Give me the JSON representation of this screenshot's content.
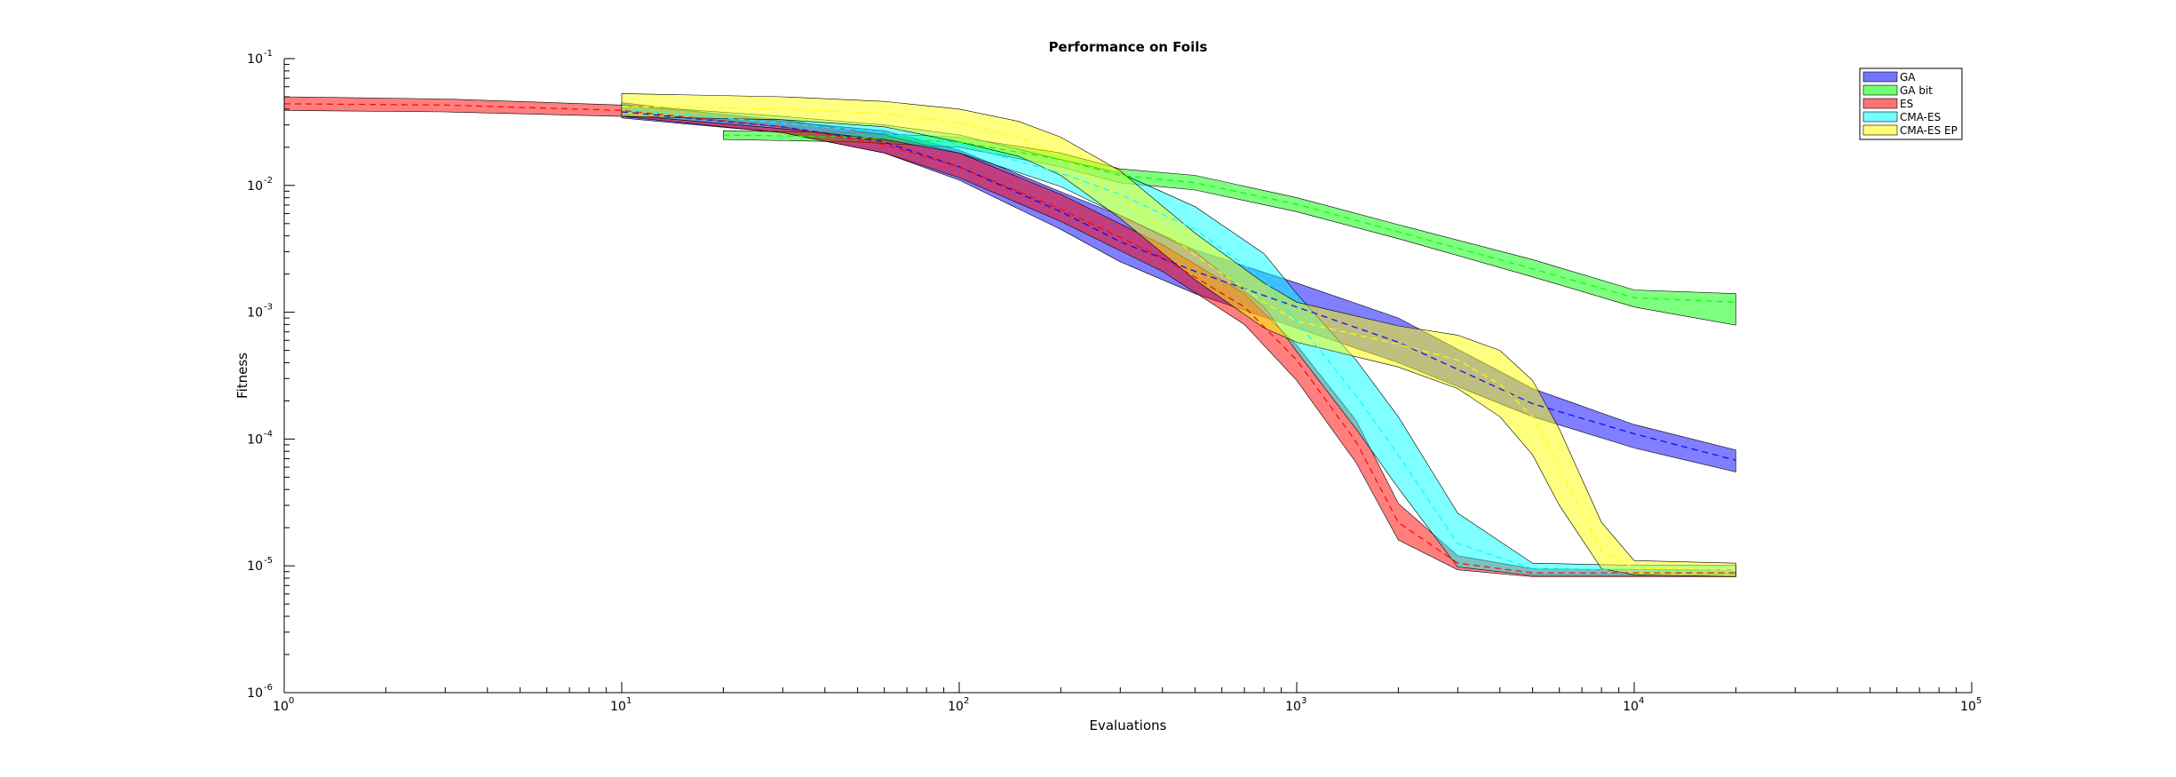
{
  "chart_data": {
    "type": "area",
    "title": "Performance on Foils",
    "xlabel": "Evaluations",
    "ylabel": "Fitness",
    "x_scale": "log",
    "y_scale": "log",
    "xlim": [
      1,
      100000
    ],
    "ylim": [
      1e-06,
      0.1
    ],
    "x_ticks": [
      {
        "base": "10",
        "exp": "0"
      },
      {
        "base": "10",
        "exp": "1"
      },
      {
        "base": "10",
        "exp": "2"
      },
      {
        "base": "10",
        "exp": "3"
      },
      {
        "base": "10",
        "exp": "4"
      },
      {
        "base": "10",
        "exp": "5"
      }
    ],
    "y_ticks": [
      {
        "base": "10",
        "exp": "-1"
      },
      {
        "base": "10",
        "exp": "-2"
      },
      {
        "base": "10",
        "exp": "-3"
      },
      {
        "base": "10",
        "exp": "-4"
      },
      {
        "base": "10",
        "exp": "-5"
      },
      {
        "base": "10",
        "exp": "-6"
      }
    ],
    "legend_position": "top-right",
    "series": [
      {
        "name": "GA",
        "color": "#0000ff",
        "x": [
          10,
          30,
          60,
          100,
          200,
          300,
          500,
          1000,
          2000,
          5000,
          10000,
          20000
        ],
        "mean": [
          0.038,
          0.029,
          0.022,
          0.014,
          0.0062,
          0.0036,
          0.0021,
          0.0011,
          0.00058,
          0.00019,
          0.00011,
          6.8e-05
        ],
        "upper": [
          0.045,
          0.032,
          0.027,
          0.019,
          0.0089,
          0.0058,
          0.0031,
          0.0017,
          0.0009,
          0.00025,
          0.00013,
          8.2e-05
        ],
        "lower": [
          0.034,
          0.026,
          0.018,
          0.011,
          0.0045,
          0.0025,
          0.0014,
          0.00075,
          0.0004,
          0.00015,
          8.5e-05,
          5.5e-05
        ]
      },
      {
        "name": "GA bit",
        "color": "#00ff00",
        "x": [
          20,
          50,
          100,
          200,
          300,
          500,
          1000,
          2000,
          5000,
          10000,
          20000
        ],
        "mean": [
          0.025,
          0.024,
          0.022,
          0.016,
          0.012,
          0.0105,
          0.0071,
          0.0043,
          0.0022,
          0.0013,
          0.0012
        ],
        "upper": [
          0.027,
          0.026,
          0.024,
          0.018,
          0.0135,
          0.012,
          0.008,
          0.0049,
          0.0026,
          0.0015,
          0.0014
        ],
        "lower": [
          0.023,
          0.022,
          0.02,
          0.014,
          0.0105,
          0.0092,
          0.0062,
          0.0038,
          0.0019,
          0.0011,
          0.00079
        ]
      },
      {
        "name": "ES",
        "color": "#ff0000",
        "x": [
          1,
          3,
          10,
          30,
          60,
          100,
          200,
          400,
          700,
          1000,
          1500,
          2000,
          3000,
          5000,
          10000,
          20000
        ],
        "mean": [
          0.044,
          0.043,
          0.039,
          0.029,
          0.021,
          0.014,
          0.0065,
          0.0027,
          0.0011,
          0.00042,
          9.5e-05,
          2.2e-05,
          1.05e-05,
          8.8e-06,
          8.8e-06,
          8.8e-06
        ],
        "upper": [
          0.05,
          0.048,
          0.043,
          0.033,
          0.025,
          0.018,
          0.0085,
          0.0034,
          0.0014,
          0.00055,
          0.00014,
          3.1e-05,
          1.2e-05,
          9.5e-06,
          9.3e-06,
          9.3e-06
        ],
        "lower": [
          0.039,
          0.038,
          0.035,
          0.026,
          0.018,
          0.0115,
          0.0052,
          0.0021,
          0.0008,
          0.00029,
          6.5e-05,
          1.6e-05,
          9.3e-06,
          8.2e-06,
          8.2e-06,
          8.2e-06
        ]
      },
      {
        "name": "CMA-ES",
        "color": "#00ffff",
        "x": [
          10,
          30,
          60,
          100,
          200,
          300,
          500,
          800,
          1000,
          1500,
          2000,
          3000,
          5000,
          10000,
          20000
        ],
        "mean": [
          0.04,
          0.031,
          0.026,
          0.021,
          0.0125,
          0.0085,
          0.0045,
          0.0018,
          0.00085,
          0.00022,
          7.5e-05,
          1.5e-05,
          9.5e-06,
          9.3e-06,
          9.3e-06
        ],
        "upper": [
          0.043,
          0.035,
          0.03,
          0.025,
          0.016,
          0.0125,
          0.0068,
          0.0029,
          0.0014,
          0.00042,
          0.00015,
          2.6e-05,
          1.05e-05,
          1.01e-05,
          1.01e-05
        ],
        "lower": [
          0.036,
          0.028,
          0.023,
          0.018,
          0.0098,
          0.0058,
          0.003,
          0.0011,
          0.00049,
          0.00012,
          4.1e-05,
          9.8e-06,
          8.4e-06,
          8.4e-06,
          8.4e-06
        ]
      },
      {
        "name": "CMA-ES EP",
        "color": "#ffff00",
        "x": [
          10,
          30,
          60,
          100,
          150,
          200,
          300,
          500,
          800,
          1000,
          2000,
          3000,
          4000,
          5000,
          6000,
          8000,
          10000,
          20000
        ],
        "mean": [
          0.042,
          0.04,
          0.037,
          0.031,
          0.024,
          0.017,
          0.0082,
          0.0028,
          0.0012,
          0.00085,
          0.00056,
          0.00042,
          0.00027,
          0.00015,
          6e-05,
          1.3e-05,
          9.6e-06,
          9.3e-06
        ],
        "upper": [
          0.053,
          0.05,
          0.046,
          0.04,
          0.032,
          0.024,
          0.013,
          0.0042,
          0.0017,
          0.0012,
          0.00078,
          0.00066,
          0.0005,
          0.00029,
          0.00012,
          2.2e-05,
          1.1e-05,
          1.05e-05
        ],
        "lower": [
          0.035,
          0.033,
          0.029,
          0.022,
          0.017,
          0.012,
          0.0055,
          0.0018,
          0.00075,
          0.00058,
          0.00037,
          0.00025,
          0.00015,
          7.5e-05,
          3e-05,
          9.5e-06,
          8.5e-06,
          8.2e-06
        ]
      }
    ]
  }
}
